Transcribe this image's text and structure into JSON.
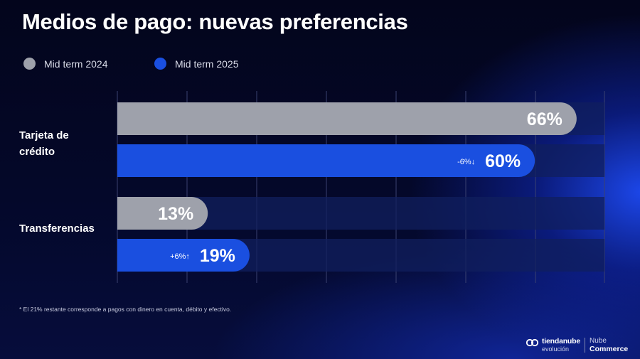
{
  "title": "Medios de pago: nuevas preferencias",
  "legend": [
    {
      "label": "Mid term 2024",
      "color": "#9ea1ab"
    },
    {
      "label": "Mid term 2025",
      "color": "#1a4fe0"
    }
  ],
  "chart_data": {
    "type": "bar",
    "orientation": "horizontal",
    "title": "Medios de pago: nuevas preferencias",
    "categories": [
      "Tarjeta de crédito",
      "Transferencias"
    ],
    "series": [
      {
        "name": "Mid term 2024",
        "color": "#9ea1ab",
        "values": [
          66,
          13
        ],
        "labels": [
          "66%",
          "13%"
        ]
      },
      {
        "name": "Mid term 2025",
        "color": "#1a4fe0",
        "values": [
          60,
          19
        ],
        "labels": [
          "60%",
          "19%"
        ]
      }
    ],
    "changes": [
      "-6%↓",
      "+6%↑"
    ],
    "xlim": [
      0,
      70
    ],
    "grid": true,
    "legend_position": "top-left"
  },
  "footnote": "* El 21% restante corresponde a pagos con dinero en cuenta, débito y efectivo.",
  "brand": {
    "name_line1": "tiendanube",
    "name_line2": "evolución",
    "partner_line1": "Nube",
    "partner_line2": "Commerce"
  }
}
